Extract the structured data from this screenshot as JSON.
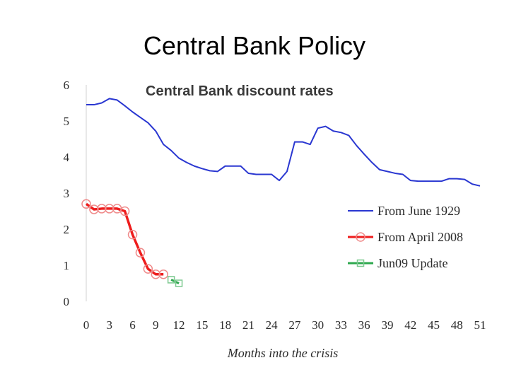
{
  "slide": {
    "title": "Central Bank Policy"
  },
  "chart_data": {
    "type": "line",
    "title": "Central Bank discount rates",
    "xlabel": "Months into the crisis",
    "ylabel": "",
    "xlim": [
      0,
      51
    ],
    "ylim": [
      0,
      6
    ],
    "x_ticks": [
      0,
      3,
      6,
      9,
      12,
      15,
      18,
      21,
      24,
      27,
      30,
      33,
      36,
      39,
      42,
      45,
      48,
      51
    ],
    "y_ticks": [
      0,
      1,
      2,
      3,
      4,
      5,
      6
    ],
    "grid": false,
    "legend_position": "right",
    "series": [
      {
        "name": "From June 1929",
        "color": "#2a37d1",
        "marker": "none",
        "x": [
          0,
          1,
          2,
          3,
          4,
          5,
          6,
          7,
          8,
          9,
          10,
          11,
          12,
          13,
          14,
          15,
          16,
          17,
          18,
          19,
          20,
          21,
          22,
          23,
          24,
          25,
          26,
          27,
          28,
          29,
          30,
          31,
          32,
          33,
          34,
          35,
          36,
          37,
          38,
          39,
          40,
          41,
          42,
          43,
          44,
          45,
          46,
          47,
          48,
          49,
          50,
          51
        ],
        "y": [
          5.45,
          5.45,
          5.5,
          5.62,
          5.58,
          5.42,
          5.25,
          5.1,
          4.95,
          4.72,
          4.35,
          4.18,
          3.97,
          3.85,
          3.75,
          3.68,
          3.62,
          3.6,
          3.75,
          3.75,
          3.75,
          3.55,
          3.52,
          3.52,
          3.52,
          3.35,
          3.6,
          4.42,
          4.42,
          4.35,
          4.8,
          4.85,
          4.72,
          4.68,
          4.6,
          4.32,
          4.08,
          3.85,
          3.65,
          3.6,
          3.55,
          3.52,
          3.35,
          3.33,
          3.33,
          3.33,
          3.33,
          3.4,
          3.4,
          3.38,
          3.25,
          3.2
        ]
      },
      {
        "name": "From April 2008",
        "color": "#ee1c1c",
        "marker": "circle",
        "x": [
          0,
          1,
          2,
          3,
          4,
          5,
          6,
          7,
          8,
          9,
          10
        ],
        "y": [
          2.7,
          2.55,
          2.57,
          2.57,
          2.57,
          2.5,
          1.85,
          1.35,
          0.9,
          0.75,
          0.75
        ]
      },
      {
        "name": "Jun09 Update",
        "color": "#2fa84f",
        "marker": "square",
        "x": [
          11,
          12
        ],
        "y": [
          0.6,
          0.5
        ]
      }
    ]
  }
}
